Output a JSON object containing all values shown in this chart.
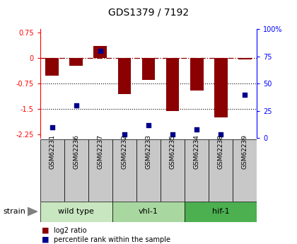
{
  "title": "GDS1379 / 7192",
  "samples": [
    "GSM62231",
    "GSM62236",
    "GSM62237",
    "GSM62232",
    "GSM62233",
    "GSM62235",
    "GSM62234",
    "GSM62238",
    "GSM62239"
  ],
  "log2_ratios": [
    -0.52,
    -0.22,
    0.35,
    -1.05,
    -0.65,
    -1.55,
    -0.95,
    -1.75,
    -0.04
  ],
  "percentile_ranks": [
    10,
    30,
    80,
    3,
    12,
    3,
    8,
    3,
    40
  ],
  "groups": [
    {
      "label": "wild type",
      "indices": [
        0,
        1,
        2
      ],
      "color": "#c8e6c0"
    },
    {
      "label": "vhl-1",
      "indices": [
        3,
        4,
        5
      ],
      "color": "#a8d8a0"
    },
    {
      "label": "hif-1",
      "indices": [
        6,
        7,
        8
      ],
      "color": "#4caf50"
    }
  ],
  "bar_color": "#8B0000",
  "dot_color": "#00008B",
  "ylim_left": [
    -2.35,
    0.85
  ],
  "ylim_right": [
    0,
    100
  ],
  "yticks_left": [
    -2.25,
    -1.5,
    -0.75,
    0,
    0.75
  ],
  "yticks_right": [
    0,
    25,
    50,
    75,
    100
  ],
  "dotted_lines": [
    -0.75,
    -1.5
  ],
  "legend_items": [
    {
      "color": "#8B0000",
      "label": "log2 ratio"
    },
    {
      "color": "#00008B",
      "label": "percentile rank within the sample"
    }
  ],
  "group_row_color": "#c8c8c8",
  "strain_label": "strain",
  "bg_color": "#ffffff"
}
